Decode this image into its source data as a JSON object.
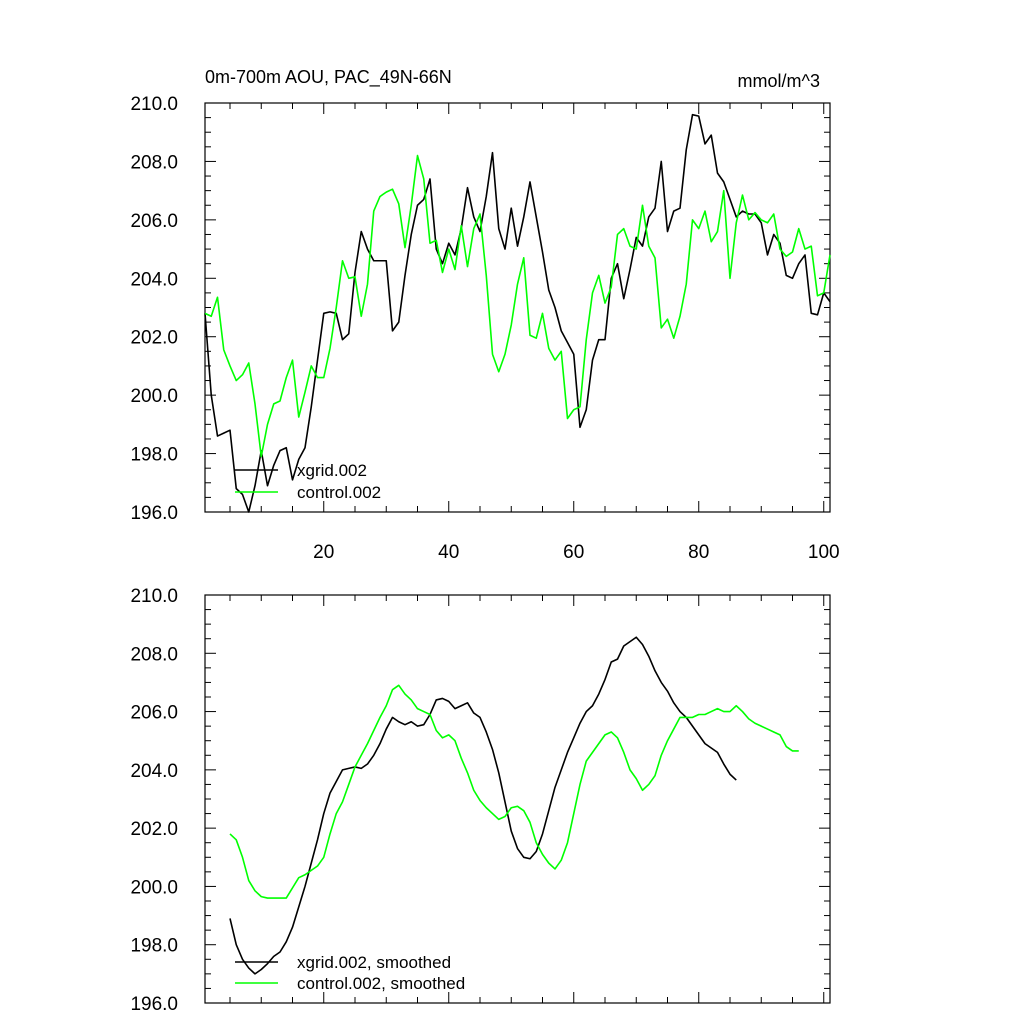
{
  "chart_data": [
    {
      "type": "line",
      "title": "0m-700m AOU, PAC_49N-66N",
      "units_label": "mmol/m^3",
      "xlabel": "",
      "ylabel": "",
      "xlim": [
        1,
        101
      ],
      "ylim": [
        196,
        210
      ],
      "x_tick_labels": [
        "20",
        "40",
        "60",
        "80",
        "100"
      ],
      "x_tick_values": [
        20,
        40,
        60,
        80,
        100
      ],
      "y_tick_labels": [
        "196.0",
        "198.0",
        "200.0",
        "202.0",
        "204.0",
        "206.0",
        "208.0",
        "210.0"
      ],
      "y_tick_values": [
        196,
        198,
        200,
        202,
        204,
        206,
        208,
        210
      ],
      "legend_position": "bottom-left",
      "x_start": 1,
      "series": [
        {
          "name": "xgrid.002",
          "color": "#000000",
          "values": [
            202.8,
            200.0,
            198.6,
            198.7,
            198.8,
            196.8,
            196.6,
            196.0,
            196.9,
            198.1,
            196.9,
            197.6,
            198.1,
            198.2,
            197.1,
            197.8,
            198.2,
            199.6,
            201.2,
            202.8,
            202.85,
            202.8,
            201.9,
            202.1,
            204.2,
            205.6,
            205.0,
            204.6,
            204.6,
            204.6,
            202.2,
            202.5,
            204.1,
            205.5,
            206.5,
            206.7,
            207.4,
            205.0,
            204.5,
            205.2,
            204.8,
            205.7,
            207.1,
            206.1,
            205.6,
            206.8,
            208.3,
            205.7,
            205.0,
            206.4,
            205.1,
            206.1,
            207.3,
            206.1,
            204.9,
            203.6,
            203.0,
            202.2,
            201.8,
            201.4,
            198.9,
            199.5,
            201.2,
            201.9,
            201.9,
            204.0,
            204.5,
            203.3,
            204.3,
            205.4,
            205.1,
            206.1,
            206.4,
            208.0,
            205.6,
            206.3,
            206.4,
            208.4,
            209.6,
            209.55,
            208.6,
            208.9,
            207.6,
            207.3,
            206.7,
            206.1,
            206.3,
            206.2,
            206.2,
            205.9,
            204.8,
            205.5,
            205.2,
            204.1,
            204.0,
            204.5,
            204.8,
            202.8,
            202.75,
            203.5,
            203.2
          ]
        },
        {
          "name": "control.002",
          "color": "#00ff00",
          "values": [
            202.8,
            202.7,
            203.35,
            201.55,
            201.0,
            200.5,
            200.7,
            201.1,
            199.7,
            197.9,
            199.0,
            199.7,
            199.8,
            200.6,
            201.2,
            199.25,
            200.1,
            201.0,
            200.6,
            200.6,
            201.6,
            203.0,
            204.6,
            204.0,
            204.05,
            202.7,
            203.8,
            206.3,
            206.8,
            206.95,
            207.05,
            206.55,
            205.05,
            206.5,
            208.2,
            207.4,
            205.2,
            205.3,
            204.2,
            205.0,
            204.3,
            205.8,
            204.4,
            205.7,
            206.2,
            204.1,
            201.4,
            200.8,
            201.4,
            202.4,
            203.8,
            204.7,
            202.05,
            201.95,
            202.8,
            201.6,
            201.2,
            201.5,
            199.2,
            199.5,
            199.6,
            201.9,
            203.5,
            204.1,
            203.15,
            203.7,
            205.5,
            205.7,
            205.1,
            205.0,
            206.5,
            205.1,
            204.7,
            202.3,
            202.6,
            201.95,
            202.7,
            203.8,
            206.0,
            205.7,
            206.3,
            205.25,
            205.6,
            207.0,
            204.0,
            205.9,
            206.85,
            206.0,
            206.25,
            206.0,
            205.9,
            206.2,
            205.0,
            204.75,
            204.9,
            205.7,
            205.0,
            205.1,
            203.4,
            203.5,
            204.8
          ]
        }
      ]
    },
    {
      "type": "line",
      "title": "",
      "xlabel": "",
      "ylabel": "",
      "xlim": [
        1,
        101
      ],
      "ylim": [
        196,
        210
      ],
      "x_tick_labels": [],
      "x_tick_values": [
        20,
        40,
        60,
        80,
        100
      ],
      "y_tick_labels": [
        "196.0",
        "198.0",
        "200.0",
        "202.0",
        "204.0",
        "206.0",
        "208.0",
        "210.0"
      ],
      "y_tick_values": [
        196,
        198,
        200,
        202,
        204,
        206,
        208,
        210
      ],
      "legend_position": "bottom-left",
      "x_start": 5,
      "series": [
        {
          "name": "xgrid.002, smoothed",
          "color": "#000000",
          "values": [
            198.9,
            198.0,
            197.5,
            197.2,
            197.0,
            197.15,
            197.35,
            197.6,
            197.75,
            198.1,
            198.6,
            199.3,
            200.0,
            200.8,
            201.6,
            202.5,
            203.2,
            203.6,
            204.0,
            204.05,
            204.1,
            204.05,
            204.2,
            204.5,
            204.9,
            205.4,
            205.8,
            205.65,
            205.55,
            205.65,
            205.5,
            205.55,
            205.9,
            206.4,
            206.45,
            206.35,
            206.1,
            206.2,
            206.3,
            205.95,
            205.8,
            205.3,
            204.7,
            203.9,
            202.9,
            201.9,
            201.3,
            201.0,
            200.95,
            201.2,
            201.8,
            202.6,
            203.4,
            204.0,
            204.6,
            205.1,
            205.6,
            206.0,
            206.2,
            206.6,
            207.1,
            207.7,
            207.8,
            208.25,
            208.4,
            208.55,
            208.3,
            207.9,
            207.4,
            207.0,
            206.7,
            206.3,
            206.0,
            205.8,
            205.5,
            205.2,
            204.9,
            204.75,
            204.6,
            204.2,
            203.85,
            203.65
          ]
        },
        {
          "name": "control.002, smoothed",
          "color": "#00ff00",
          "values": [
            201.8,
            201.6,
            201.0,
            200.2,
            199.85,
            199.65,
            199.6,
            199.6,
            199.6,
            199.6,
            199.95,
            200.3,
            200.4,
            200.55,
            200.7,
            201.0,
            201.8,
            202.5,
            202.9,
            203.5,
            204.1,
            204.5,
            204.9,
            205.35,
            205.8,
            206.2,
            206.75,
            206.9,
            206.6,
            206.4,
            206.1,
            206.0,
            205.9,
            205.35,
            205.1,
            205.2,
            205.0,
            204.4,
            203.9,
            203.3,
            202.95,
            202.7,
            202.5,
            202.3,
            202.4,
            202.7,
            202.75,
            202.6,
            202.2,
            201.5,
            201.1,
            200.8,
            200.6,
            200.9,
            201.5,
            202.5,
            203.5,
            204.3,
            204.6,
            204.9,
            205.2,
            205.3,
            205.1,
            204.6,
            204.0,
            203.7,
            203.3,
            203.5,
            203.8,
            204.5,
            205.0,
            205.4,
            205.8,
            205.8,
            205.8,
            205.9,
            205.9,
            206.0,
            206.1,
            206.0,
            206.0,
            206.2,
            206.0,
            205.75,
            205.6,
            205.5,
            205.4,
            205.3,
            205.2,
            204.8,
            204.65,
            204.65
          ]
        }
      ]
    }
  ]
}
